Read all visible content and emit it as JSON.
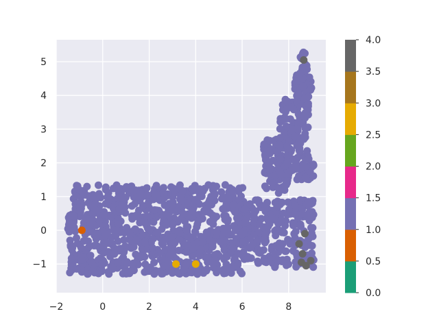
{
  "chart_data": {
    "type": "scatter",
    "title": "",
    "xlabel": "",
    "ylabel": "",
    "xlim": [
      -2,
      9.6
    ],
    "ylim": [
      -1.85,
      5.65
    ],
    "x_ticks": [
      -2,
      0,
      2,
      4,
      6,
      8
    ],
    "x_tick_labels": [
      "−2",
      "0",
      "2",
      "4",
      "6",
      "8"
    ],
    "y_ticks": [
      -1,
      0,
      1,
      2,
      3,
      4,
      5
    ],
    "y_tick_labels": [
      "−1",
      "0",
      "1",
      "2",
      "3",
      "4",
      "5"
    ],
    "grid": true,
    "background": "#eaeaf2",
    "colorbar": {
      "range": [
        0,
        4
      ],
      "ticks": [
        0.0,
        0.5,
        1.0,
        1.5,
        2.0,
        2.5,
        3.0,
        3.5,
        4.0
      ],
      "tick_labels": [
        "0.0",
        "0.5",
        "1.0",
        "1.5",
        "2.0",
        "2.5",
        "3.0",
        "3.5",
        "4.0"
      ],
      "colors": [
        "#1b9e77",
        "#d95f02",
        "#7570b3",
        "#e7298a",
        "#66a61e",
        "#e6ab02",
        "#a6761d",
        "#666666"
      ]
    },
    "dominant_value": 1,
    "dominant_color": "#7570b3",
    "regions": [
      {
        "name": "main-block",
        "value": 1,
        "x_range": [
          -1.5,
          6.3
        ],
        "y_range": [
          -1.4,
          1.45
        ]
      },
      {
        "name": "right-arm",
        "value": 1,
        "x_range": [
          6.0,
          9.2
        ],
        "y_range": [
          -1.3,
          1.1
        ]
      },
      {
        "name": "vertical-column",
        "value": 1,
        "x_range": [
          6.8,
          9.2
        ],
        "y_range": [
          1.1,
          5.3
        ]
      }
    ],
    "highlight_points": [
      {
        "x": 8.65,
        "y": 5.05,
        "value": 3.5
      },
      {
        "x": 8.6,
        "y": -0.7,
        "value": 4
      },
      {
        "x": 8.55,
        "y": -0.95,
        "value": 4
      },
      {
        "x": 8.75,
        "y": -1.05,
        "value": 4
      },
      {
        "x": 8.95,
        "y": -0.9,
        "value": 4
      },
      {
        "x": 8.7,
        "y": -0.1,
        "value": 4
      },
      {
        "x": 8.45,
        "y": -0.4,
        "value": 4
      },
      {
        "x": -0.9,
        "y": 0.0,
        "value": 0.5
      },
      {
        "x": 3.15,
        "y": -1.0,
        "value": 2.5
      },
      {
        "x": 4.0,
        "y": -1.0,
        "value": 2.5
      }
    ]
  }
}
